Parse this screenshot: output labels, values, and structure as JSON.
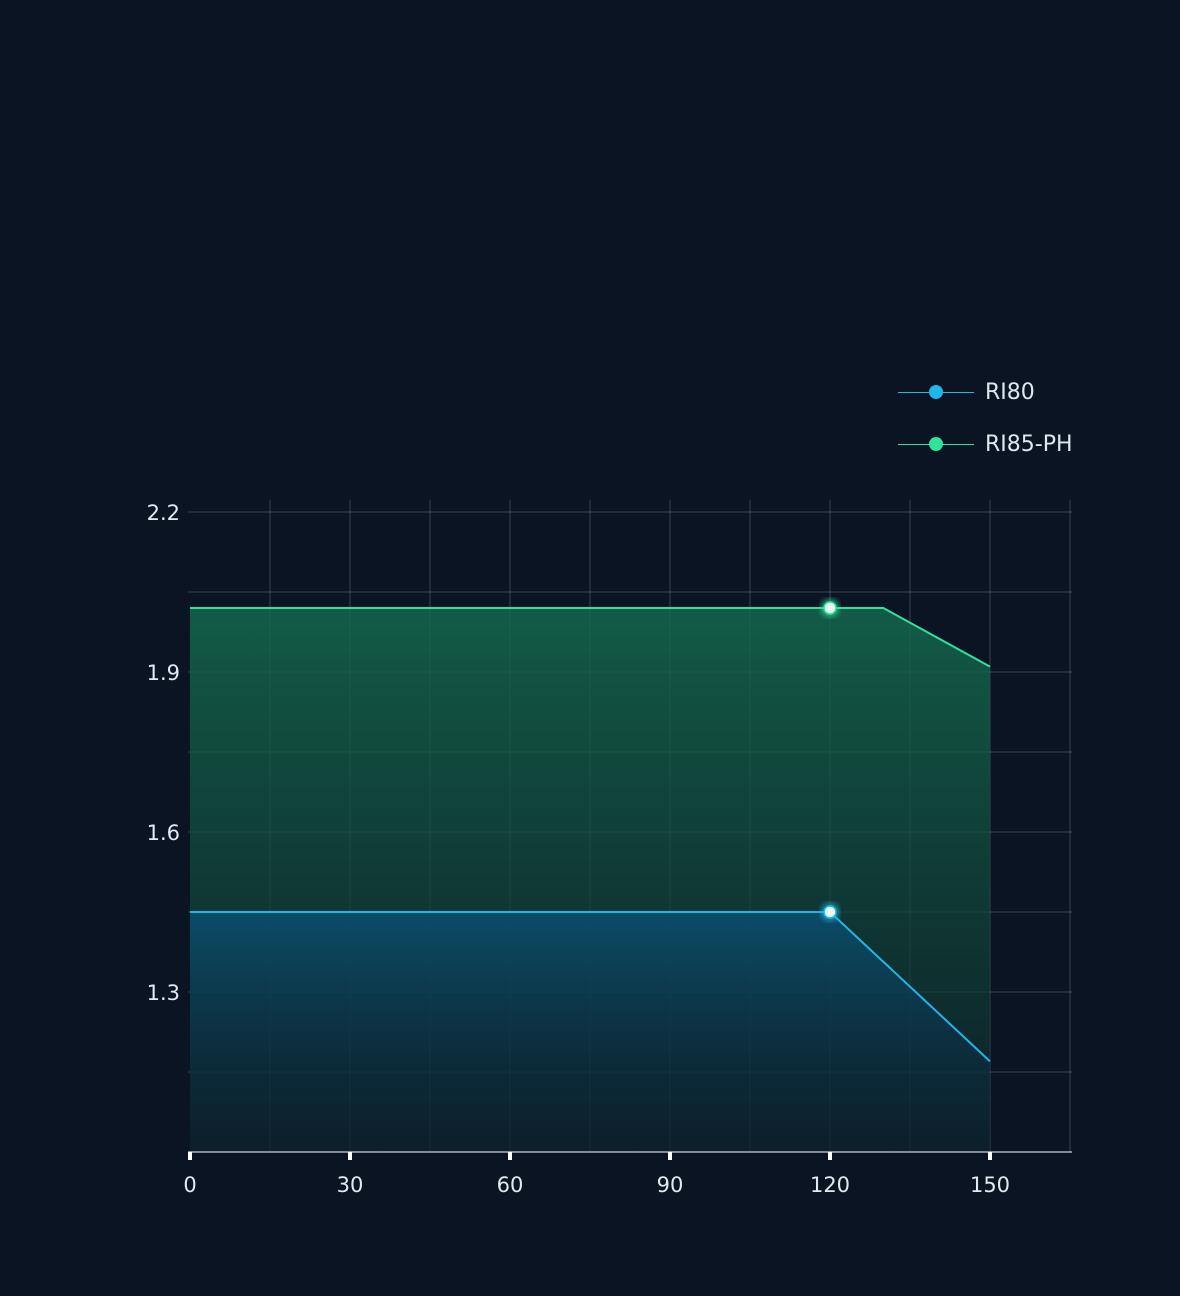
{
  "chart_data": {
    "type": "area",
    "title": "",
    "xlabel": "",
    "ylabel": "",
    "xlim": [
      0,
      165
    ],
    "ylim": [
      1.0,
      2.2
    ],
    "x_ticks": [
      "0",
      "30",
      "60",
      "90",
      "120",
      "150"
    ],
    "x_tick_values": [
      0,
      30,
      60,
      90,
      120,
      150
    ],
    "y_ticks": [
      "2.2",
      "1.9",
      "1.6",
      "1.3"
    ],
    "y_tick_values": [
      2.2,
      1.9,
      1.6,
      1.3
    ],
    "grid": true,
    "legend_position": "top-right",
    "series": [
      {
        "name": "RI80",
        "color": "#1fb6ea",
        "x": [
          0,
          120,
          150
        ],
        "y": [
          1.45,
          1.45,
          1.17
        ],
        "marker_at": 120
      },
      {
        "name": "RI85-PH",
        "color": "#2fe39a",
        "x": [
          0,
          130,
          150
        ],
        "y": [
          2.02,
          2.02,
          1.91
        ],
        "marker_at": 120
      }
    ]
  }
}
